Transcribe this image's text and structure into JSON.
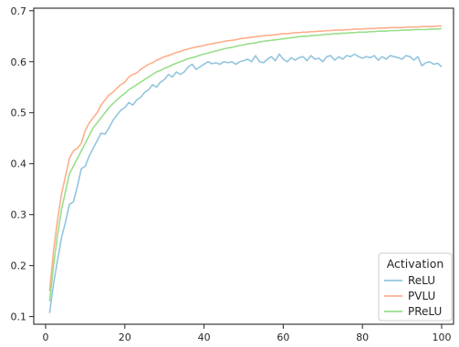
{
  "chart_data": {
    "type": "line",
    "title": "",
    "xlabel": "",
    "ylabel": "",
    "xlim": [
      -3,
      103
    ],
    "ylim": [
      0.085,
      0.705
    ],
    "x_ticks": [
      0,
      20,
      40,
      60,
      80,
      100
    ],
    "y_ticks": [
      0.1,
      0.2,
      0.3,
      0.4,
      0.5,
      0.6,
      0.7
    ],
    "grid": false,
    "legend": {
      "title": "Activation",
      "placement": "lower-right"
    },
    "x": [
      1,
      2,
      3,
      4,
      5,
      6,
      7,
      8,
      9,
      10,
      11,
      12,
      13,
      14,
      15,
      16,
      17,
      18,
      19,
      20,
      21,
      22,
      23,
      24,
      25,
      26,
      27,
      28,
      29,
      30,
      31,
      32,
      33,
      34,
      35,
      36,
      37,
      38,
      39,
      40,
      41,
      42,
      43,
      44,
      45,
      46,
      47,
      48,
      49,
      50,
      51,
      52,
      53,
      54,
      55,
      56,
      57,
      58,
      59,
      60,
      61,
      62,
      63,
      64,
      65,
      66,
      67,
      68,
      69,
      70,
      71,
      72,
      73,
      74,
      75,
      76,
      77,
      78,
      79,
      80,
      81,
      82,
      83,
      84,
      85,
      86,
      87,
      88,
      89,
      90,
      91,
      92,
      93,
      94,
      95,
      96,
      97,
      98,
      99,
      100
    ],
    "series": [
      {
        "name": "ReLU",
        "color": "#92c5de",
        "values": [
          0.107,
          0.165,
          0.21,
          0.255,
          0.285,
          0.32,
          0.325,
          0.355,
          0.39,
          0.395,
          0.415,
          0.43,
          0.445,
          0.46,
          0.458,
          0.47,
          0.485,
          0.495,
          0.505,
          0.51,
          0.52,
          0.515,
          0.525,
          0.53,
          0.54,
          0.545,
          0.555,
          0.55,
          0.56,
          0.565,
          0.575,
          0.57,
          0.58,
          0.575,
          0.58,
          0.59,
          0.595,
          0.585,
          0.59,
          0.595,
          0.6,
          0.596,
          0.598,
          0.595,
          0.6,
          0.598,
          0.6,
          0.595,
          0.6,
          0.602,
          0.605,
          0.6,
          0.612,
          0.6,
          0.598,
          0.605,
          0.61,
          0.602,
          0.615,
          0.605,
          0.6,
          0.608,
          0.603,
          0.608,
          0.61,
          0.602,
          0.612,
          0.605,
          0.607,
          0.6,
          0.61,
          0.612,
          0.603,
          0.61,
          0.605,
          0.612,
          0.61,
          0.615,
          0.61,
          0.607,
          0.61,
          0.608,
          0.612,
          0.603,
          0.61,
          0.605,
          0.612,
          0.61,
          0.608,
          0.605,
          0.612,
          0.61,
          0.603,
          0.61,
          0.592,
          0.598,
          0.6,
          0.595,
          0.597,
          0.59
        ]
      },
      {
        "name": "PVLU",
        "color": "#fdae8b",
        "values": [
          0.15,
          0.23,
          0.29,
          0.34,
          0.375,
          0.41,
          0.425,
          0.43,
          0.44,
          0.465,
          0.48,
          0.49,
          0.5,
          0.515,
          0.525,
          0.535,
          0.54,
          0.548,
          0.555,
          0.56,
          0.57,
          0.575,
          0.578,
          0.585,
          0.59,
          0.595,
          0.598,
          0.603,
          0.606,
          0.61,
          0.612,
          0.615,
          0.618,
          0.62,
          0.623,
          0.625,
          0.627,
          0.629,
          0.63,
          0.632,
          0.634,
          0.635,
          0.637,
          0.638,
          0.64,
          0.641,
          0.642,
          0.643,
          0.645,
          0.646,
          0.647,
          0.648,
          0.649,
          0.65,
          0.651,
          0.652,
          0.652,
          0.653,
          0.654,
          0.655,
          0.655,
          0.656,
          0.657,
          0.657,
          0.658,
          0.658,
          0.659,
          0.659,
          0.66,
          0.66,
          0.661,
          0.661,
          0.662,
          0.662,
          0.662,
          0.663,
          0.663,
          0.664,
          0.664,
          0.664,
          0.665,
          0.665,
          0.665,
          0.666,
          0.666,
          0.666,
          0.667,
          0.667,
          0.667,
          0.667,
          0.668,
          0.668,
          0.668,
          0.668,
          0.669,
          0.669,
          0.669,
          0.669,
          0.67,
          0.67
        ]
      },
      {
        "name": "PReLU",
        "color": "#98df8a",
        "values": [
          0.13,
          0.2,
          0.26,
          0.31,
          0.345,
          0.38,
          0.395,
          0.41,
          0.425,
          0.44,
          0.455,
          0.47,
          0.48,
          0.49,
          0.5,
          0.51,
          0.518,
          0.525,
          0.532,
          0.538,
          0.545,
          0.55,
          0.555,
          0.56,
          0.565,
          0.57,
          0.575,
          0.58,
          0.583,
          0.587,
          0.59,
          0.594,
          0.597,
          0.6,
          0.603,
          0.606,
          0.608,
          0.61,
          0.613,
          0.615,
          0.617,
          0.619,
          0.621,
          0.623,
          0.625,
          0.627,
          0.628,
          0.63,
          0.632,
          0.633,
          0.635,
          0.636,
          0.637,
          0.639,
          0.64,
          0.641,
          0.642,
          0.643,
          0.644,
          0.645,
          0.646,
          0.647,
          0.648,
          0.649,
          0.65,
          0.65,
          0.651,
          0.652,
          0.652,
          0.653,
          0.654,
          0.654,
          0.655,
          0.655,
          0.656,
          0.656,
          0.657,
          0.657,
          0.658,
          0.658,
          0.658,
          0.659,
          0.659,
          0.66,
          0.66,
          0.66,
          0.661,
          0.661,
          0.661,
          0.662,
          0.662,
          0.662,
          0.663,
          0.663,
          0.663,
          0.663,
          0.664,
          0.664,
          0.664,
          0.665
        ]
      }
    ]
  }
}
